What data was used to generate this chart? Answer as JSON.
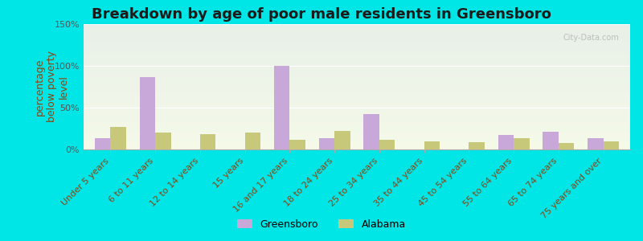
{
  "title": "Breakdown by age of poor male residents in Greensboro",
  "categories": [
    "Under 5 years",
    "6 to 11 years",
    "12 to 14 years",
    "15 years",
    "16 and 17 years",
    "18 to 24 years",
    "25 to 34 years",
    "35 to 44 years",
    "45 to 54 years",
    "55 to 64 years",
    "65 to 74 years",
    "75 years and over"
  ],
  "greensboro": [
    13,
    87,
    0,
    0,
    100,
    13,
    42,
    0,
    0,
    17,
    21,
    13
  ],
  "alabama": [
    27,
    20,
    18,
    20,
    12,
    22,
    12,
    10,
    9,
    13,
    8,
    10
  ],
  "greensboro_color": "#c8a8d8",
  "alabama_color": "#c8c87a",
  "ylabel": "percentage\nbelow poverty\nlevel",
  "ylim": [
    0,
    150
  ],
  "yticks": [
    0,
    50,
    100,
    150
  ],
  "ytick_labels": [
    "0%",
    "50%",
    "100%",
    "150%"
  ],
  "bg_color_top": "#e8f0e8",
  "bg_color_bottom": "#f5f8e8",
  "outer_bg": "#00e5e5",
  "bar_width": 0.35,
  "title_fontsize": 13,
  "axis_fontsize": 9,
  "tick_fontsize": 8,
  "watermark": "City-Data.com"
}
